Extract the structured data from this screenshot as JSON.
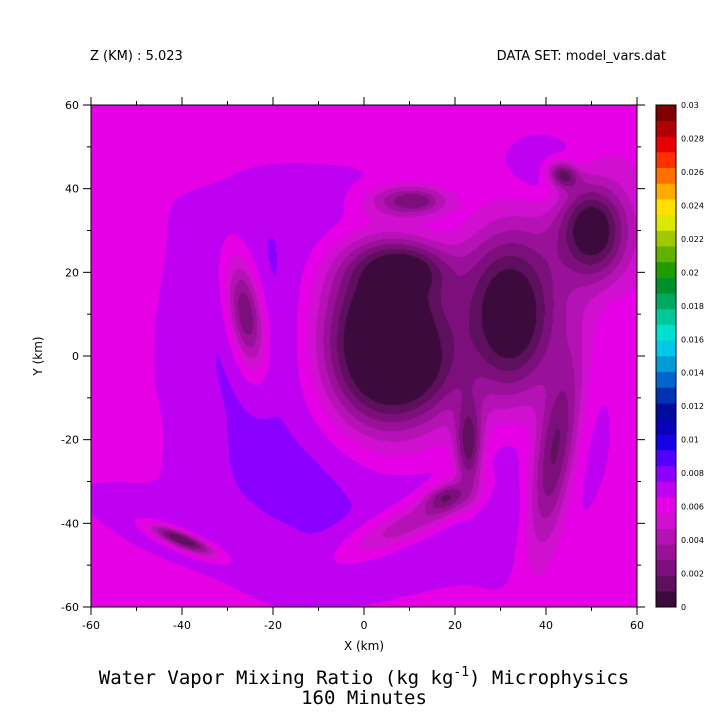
{
  "header": {
    "z_label": "Z (KM) : 5.023",
    "dataset_label": "DATA SET: model_vars.dat"
  },
  "title": {
    "line1_main": "Water Vapor Mixing Ratio (kg kg",
    "line1_sup": "-1",
    "line1_rest": ") Microphysics",
    "line2": "160 Minutes"
  },
  "chart_data": {
    "type": "heatmap",
    "title": "Water Vapor Mixing Ratio (kg kg-1) Microphysics 160 Minutes",
    "xlabel": "X (km)",
    "ylabel": "Y (km)",
    "xlim": [
      -60,
      60
    ],
    "ylim": [
      -60,
      60
    ],
    "x_ticks": [
      -60,
      -40,
      -20,
      0,
      20,
      40,
      60
    ],
    "y_ticks": [
      -60,
      -40,
      -20,
      0,
      20,
      40,
      60
    ],
    "x_tick_labels": [
      "-60",
      "-40",
      "-20",
      "0",
      "20",
      "40",
      "60"
    ],
    "y_tick_labels": [
      "-60",
      "-40",
      "-20",
      "0",
      "20",
      "40",
      "60"
    ],
    "grid": false,
    "colorbar": {
      "min": 0,
      "max": 0.03,
      "step": 0.001,
      "tick_labels": [
        "0",
        "0.002",
        "0.004",
        "0.006",
        "0.008",
        "0.01",
        "0.012",
        "0.014",
        "0.016",
        "0.018",
        "0.02",
        "0.022",
        "0.024",
        "0.026",
        "0.028",
        "0.03"
      ],
      "colors": [
        "#3d0a3d",
        "#5e0f5e",
        "#7d0f7d",
        "#991099",
        "#b512b5",
        "#d00fd0",
        "#e600e6",
        "#c000f0",
        "#8c00ff",
        "#5200ff",
        "#1600e6",
        "#0a00b8",
        "#000d9c",
        "#0033b3",
        "#0066cc",
        "#009ad6",
        "#00c8e6",
        "#00e0d0",
        "#00c89a",
        "#00a860",
        "#00902a",
        "#209c00",
        "#60b000",
        "#a0c800",
        "#dde800",
        "#ffe000",
        "#ffaa00",
        "#ff7000",
        "#ff3000",
        "#e60000",
        "#b00000",
        "#800000"
      ]
    },
    "features": [
      {
        "kind": "background",
        "value": 0.006
      },
      {
        "kind": "blob",
        "x": -50,
        "y": -5,
        "rx": 14,
        "ry": 55,
        "rot": 0,
        "value": 0.0065
      },
      {
        "kind": "blob",
        "x": 45,
        "y": 20,
        "rx": 18,
        "ry": 30,
        "rot": 0,
        "value": 0.0065
      },
      {
        "kind": "blob",
        "x": 25,
        "y": -52,
        "rx": 30,
        "ry": 8,
        "rot": 0,
        "value": 0.0065
      },
      {
        "kind": "blob",
        "x": -48,
        "y": -20,
        "rx": 12,
        "ry": 9,
        "rot": 0,
        "value": 0.0062
      },
      {
        "kind": "blob",
        "x": -15,
        "y": 58,
        "rx": 30,
        "ry": 6,
        "rot": 0,
        "value": 0.0062
      },
      {
        "kind": "blob",
        "x": -45,
        "y": 38,
        "rx": 10,
        "ry": 12,
        "rot": 0,
        "value": 0.0066
      },
      {
        "kind": "blob",
        "x": 0,
        "y": 5,
        "rx": 42,
        "ry": 45,
        "rot": 0,
        "value": 0.0075
      },
      {
        "kind": "blob",
        "x": -22,
        "y": 5,
        "rx": 16,
        "ry": 30,
        "rot": 5,
        "value": 0.0088
      },
      {
        "kind": "blob",
        "x": -12,
        "y": -28,
        "rx": 26,
        "ry": 20,
        "rot": 0,
        "value": 0.0085
      },
      {
        "kind": "blob",
        "x": 10,
        "y": -42,
        "rx": 30,
        "ry": 11,
        "rot": 25,
        "value": 0.0088
      },
      {
        "kind": "blob",
        "x": 8,
        "y": 32,
        "rx": 26,
        "ry": 12,
        "rot": 0,
        "value": 0.0088
      },
      {
        "kind": "blob",
        "x": 28,
        "y": 5,
        "rx": 8,
        "ry": 30,
        "rot": 5,
        "value": 0.0082
      },
      {
        "kind": "blob",
        "x": 40,
        "y": -20,
        "rx": 12,
        "ry": 32,
        "rot": -8,
        "value": 0.0088
      },
      {
        "kind": "blob",
        "x": 42,
        "y": 42,
        "rx": 12,
        "ry": 9,
        "rot": -40,
        "value": 0.0088
      },
      {
        "kind": "blob",
        "x": -42,
        "y": -42,
        "rx": 22,
        "ry": 6,
        "rot": -25,
        "value": 0.0082
      },
      {
        "kind": "blob",
        "x": 5,
        "y": 5,
        "rx": 14,
        "ry": 22,
        "rot": 0,
        "value": -0.0025
      },
      {
        "kind": "blob",
        "x": 8,
        "y": -2,
        "rx": 10,
        "ry": 10,
        "rot": 0,
        "value": -0.0008
      },
      {
        "kind": "blob",
        "x": 8,
        "y": 20,
        "rx": 9,
        "ry": 6,
        "rot": 0,
        "value": -0.0008
      },
      {
        "kind": "blob",
        "x": 32,
        "y": 10,
        "rx": 12,
        "ry": 22,
        "rot": 0,
        "value": -0.0008
      },
      {
        "kind": "blob",
        "x": 50,
        "y": 30,
        "rx": 8,
        "ry": 12,
        "rot": 0,
        "value": -0.0006
      },
      {
        "kind": "blob",
        "x": -26,
        "y": 10,
        "rx": 4,
        "ry": 14,
        "rot": 8,
        "value": 0.0022
      },
      {
        "kind": "blob",
        "x": 10,
        "y": 37,
        "rx": 9,
        "ry": 4,
        "rot": 0,
        "value": 0.0025
      },
      {
        "kind": "blob",
        "x": 11,
        "y": 37,
        "rx": 3,
        "ry": 1.5,
        "rot": 0,
        "value": 0.002
      },
      {
        "kind": "blob",
        "x": 42,
        "y": -22,
        "rx": 5,
        "ry": 26,
        "rot": -8,
        "value": 0.0018
      },
      {
        "kind": "blob",
        "x": 44,
        "y": 43,
        "rx": 4,
        "ry": 3,
        "rot": -40,
        "value": 0.0014
      },
      {
        "kind": "blob",
        "x": 10,
        "y": -40,
        "rx": 18,
        "ry": 5,
        "rot": 28,
        "value": 0.0045
      },
      {
        "kind": "blob",
        "x": 18,
        "y": -34,
        "rx": 5,
        "ry": 3,
        "rot": 30,
        "value": 0.0018
      },
      {
        "kind": "blob",
        "x": 23,
        "y": -20,
        "rx": 3,
        "ry": 12,
        "rot": 0,
        "value": 0.0012
      },
      {
        "kind": "blob",
        "x": -40,
        "y": -44,
        "rx": 8,
        "ry": 2,
        "rot": -25,
        "value": 0.001
      }
    ]
  }
}
